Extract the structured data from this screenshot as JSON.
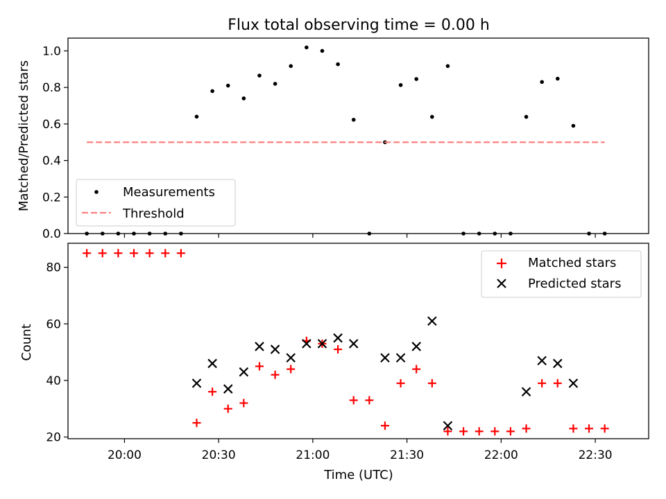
{
  "chart_data": [
    {
      "type": "scatter",
      "title": "Flux total observing time = 0.00 h",
      "xlabel": "",
      "ylabel": "Matched/Predicted stars",
      "xlim": [
        "19:42",
        "22:47"
      ],
      "ylim": [
        0,
        1.07
      ],
      "yticks": [
        0.0,
        0.2,
        0.4,
        0.6,
        0.8,
        1.0
      ],
      "ytick_labels": [
        "0.0",
        "0.2",
        "0.4",
        "0.6",
        "0.8",
        "1.0"
      ],
      "legend": {
        "placement": "lower-left",
        "entries": [
          "Measurements",
          "Threshold"
        ]
      },
      "series": [
        {
          "name": "Measurements",
          "marker": "dot",
          "color": "#000000",
          "points": [
            [
              "19:48",
              0.0
            ],
            [
              "19:53",
              0.0
            ],
            [
              "19:58",
              0.0
            ],
            [
              "20:03",
              0.0
            ],
            [
              "20:08",
              0.0
            ],
            [
              "20:13",
              0.0
            ],
            [
              "20:18",
              0.0
            ],
            [
              "20:23",
              0.64
            ],
            [
              "20:28",
              0.78
            ],
            [
              "20:33",
              0.81
            ],
            [
              "20:38",
              0.74
            ],
            [
              "20:43",
              0.865
            ],
            [
              "20:48",
              0.82
            ],
            [
              "20:53",
              0.917
            ],
            [
              "20:58",
              1.019
            ],
            [
              "21:03",
              1.0
            ],
            [
              "21:08",
              0.927
            ],
            [
              "21:13",
              0.623
            ],
            [
              "21:18",
              0.0
            ],
            [
              "21:23",
              0.5
            ],
            [
              "21:28",
              0.813
            ],
            [
              "21:33",
              0.846
            ],
            [
              "21:38",
              0.639
            ],
            [
              "21:43",
              0.917
            ],
            [
              "21:48",
              0.0
            ],
            [
              "21:53",
              0.0
            ],
            [
              "21:58",
              0.0
            ],
            [
              "22:03",
              0.0
            ],
            [
              "22:08",
              0.639
            ],
            [
              "22:13",
              0.83
            ],
            [
              "22:18",
              0.848
            ],
            [
              "22:23",
              0.59
            ],
            [
              "22:28",
              0.0
            ],
            [
              "22:33",
              0.0
            ]
          ]
        },
        {
          "name": "Threshold",
          "marker": "dashed-line",
          "color": "#ff7f7f",
          "x": [
            "19:48",
            "22:33"
          ],
          "y": [
            0.5,
            0.5
          ]
        }
      ]
    },
    {
      "type": "scatter",
      "title": "",
      "xlabel": "Time (UTC)",
      "ylabel": "Count",
      "xlim": [
        "19:42",
        "22:47"
      ],
      "ylim": [
        19.4,
        88.5
      ],
      "yticks": [
        20,
        40,
        60,
        80
      ],
      "ytick_labels": [
        "20",
        "40",
        "60",
        "80"
      ],
      "xticks": [
        "20:00",
        "20:30",
        "21:00",
        "21:30",
        "22:00",
        "22:30"
      ],
      "xtick_labels": [
        "20:00",
        "20:30",
        "21:00",
        "21:30",
        "22:00",
        "22:30"
      ],
      "legend": {
        "placement": "upper-right",
        "entries": [
          "Matched stars",
          "Predicted stars"
        ]
      },
      "series": [
        {
          "name": "Matched stars",
          "marker": "plus",
          "color": "#ff0000",
          "points": [
            [
              "19:48",
              85
            ],
            [
              "19:53",
              85
            ],
            [
              "19:58",
              85
            ],
            [
              "20:03",
              85
            ],
            [
              "20:08",
              85
            ],
            [
              "20:13",
              85
            ],
            [
              "20:18",
              85
            ],
            [
              "20:23",
              25
            ],
            [
              "20:28",
              36
            ],
            [
              "20:33",
              30
            ],
            [
              "20:38",
              32
            ],
            [
              "20:43",
              45
            ],
            [
              "20:48",
              42
            ],
            [
              "20:53",
              44
            ],
            [
              "20:58",
              54
            ],
            [
              "21:03",
              53
            ],
            [
              "21:08",
              51
            ],
            [
              "21:13",
              33
            ],
            [
              "21:18",
              33
            ],
            [
              "21:23",
              24
            ],
            [
              "21:28",
              39
            ],
            [
              "21:33",
              44
            ],
            [
              "21:38",
              39
            ],
            [
              "21:43",
              22
            ],
            [
              "21:48",
              22
            ],
            [
              "21:53",
              22
            ],
            [
              "21:58",
              22
            ],
            [
              "22:03",
              22
            ],
            [
              "22:08",
              23
            ],
            [
              "22:13",
              39
            ],
            [
              "22:18",
              39
            ],
            [
              "22:23",
              23
            ],
            [
              "22:28",
              23
            ],
            [
              "22:33",
              23
            ]
          ]
        },
        {
          "name": "Predicted stars",
          "marker": "x",
          "color": "#000000",
          "points": [
            [
              "20:23",
              39
            ],
            [
              "20:28",
              46
            ],
            [
              "20:33",
              37
            ],
            [
              "20:38",
              43
            ],
            [
              "20:43",
              52
            ],
            [
              "20:48",
              51
            ],
            [
              "20:53",
              48
            ],
            [
              "20:58",
              53
            ],
            [
              "21:03",
              53
            ],
            [
              "21:08",
              55
            ],
            [
              "21:13",
              53
            ],
            [
              "21:23",
              48
            ],
            [
              "21:28",
              48
            ],
            [
              "21:33",
              52
            ],
            [
              "21:38",
              61
            ],
            [
              "21:43",
              24
            ],
            [
              "22:08",
              36
            ],
            [
              "22:13",
              47
            ],
            [
              "22:18",
              46
            ],
            [
              "22:23",
              39
            ]
          ]
        }
      ]
    }
  ]
}
